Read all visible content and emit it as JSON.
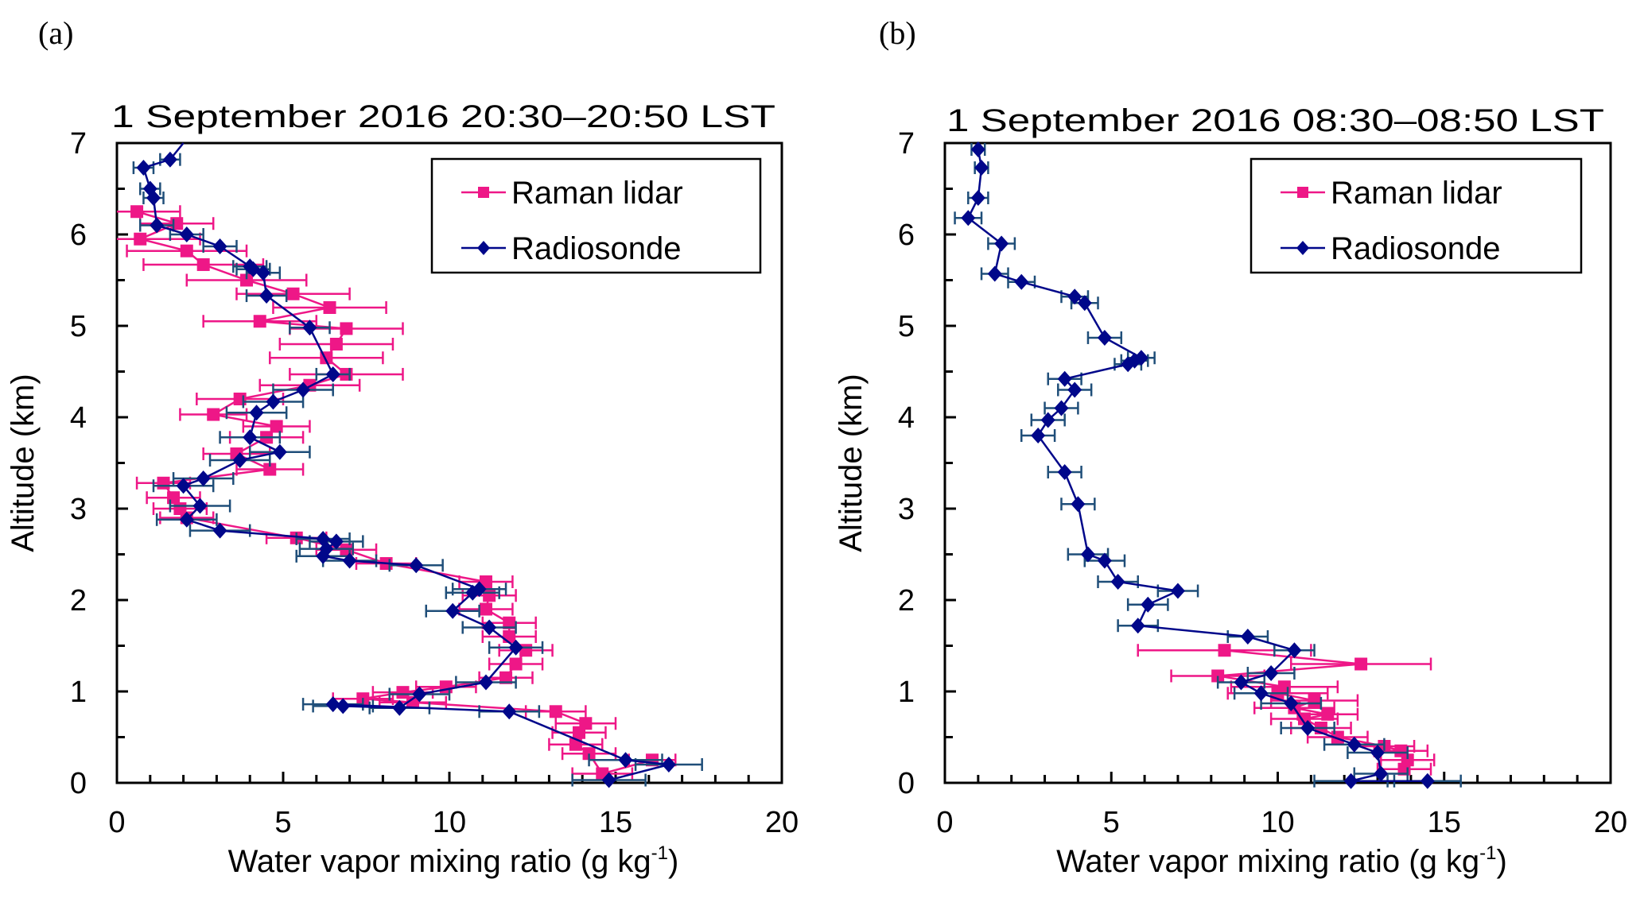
{
  "chart_data": [
    {
      "type": "line",
      "panel_label": "(a)",
      "title": "1 September 2016  20:30–20:50 LST",
      "xlabel": "Water vapor mixing ratio (g kg",
      "xlabel_sup": "-1",
      "xlabel_close": ")",
      "ylabel": "Altitude (km)",
      "xlim": [
        0,
        20
      ],
      "ylim": [
        0,
        7
      ],
      "xticks": [
        "0",
        "5",
        "10",
        "15",
        "20"
      ],
      "yticks": [
        "0",
        "1",
        "2",
        "3",
        "4",
        "5",
        "6",
        "7"
      ],
      "legend": {
        "position": "top-right",
        "entries": [
          "Raman lidar",
          "Radiosonde"
        ]
      },
      "series": [
        {
          "name": "Raman lidar",
          "color": "#ee1787",
          "marker": "square",
          "points": [
            {
              "x": 16.1,
              "y": 0.25,
              "err": 0.7
            },
            {
              "x": 14.6,
              "y": 0.1,
              "err": 0.9
            },
            {
              "x": 14.2,
              "y": 0.32,
              "err": 0.8
            },
            {
              "x": 13.8,
              "y": 0.42,
              "err": 0.8
            },
            {
              "x": 13.9,
              "y": 0.55,
              "err": 0.8
            },
            {
              "x": 14.1,
              "y": 0.65,
              "err": 0.9
            },
            {
              "x": 13.2,
              "y": 0.78,
              "err": 0.9
            },
            {
              "x": 8.9,
              "y": 0.88,
              "err": 1.0
            },
            {
              "x": 7.4,
              "y": 0.92,
              "err": 0.9
            },
            {
              "x": 8.6,
              "y": 0.99,
              "err": 0.9
            },
            {
              "x": 9.9,
              "y": 1.05,
              "err": 0.9
            },
            {
              "x": 11.7,
              "y": 1.15,
              "err": 0.8
            },
            {
              "x": 12.0,
              "y": 1.3,
              "err": 0.8
            },
            {
              "x": 12.3,
              "y": 1.45,
              "err": 0.8
            },
            {
              "x": 11.8,
              "y": 1.6,
              "err": 0.8
            },
            {
              "x": 11.8,
              "y": 1.75,
              "err": 0.8
            },
            {
              "x": 11.1,
              "y": 1.9,
              "err": 0.8
            },
            {
              "x": 11.2,
              "y": 2.05,
              "err": 0.8
            },
            {
              "x": 11.1,
              "y": 2.2,
              "err": 0.8
            },
            {
              "x": 8.1,
              "y": 2.4,
              "err": 0.9
            },
            {
              "x": 6.9,
              "y": 2.55,
              "err": 0.9
            },
            {
              "x": 5.4,
              "y": 2.68,
              "err": 0.9
            },
            {
              "x": 2.1,
              "y": 2.9,
              "err": 0.8
            },
            {
              "x": 1.9,
              "y": 3.0,
              "err": 0.8
            },
            {
              "x": 1.7,
              "y": 3.12,
              "err": 0.8
            },
            {
              "x": 1.4,
              "y": 3.28,
              "err": 0.8
            },
            {
              "x": 4.6,
              "y": 3.43,
              "err": 1.0
            },
            {
              "x": 3.6,
              "y": 3.6,
              "err": 1.0
            },
            {
              "x": 4.5,
              "y": 3.78,
              "err": 1.1
            },
            {
              "x": 4.8,
              "y": 3.9,
              "err": 1.0
            },
            {
              "x": 2.9,
              "y": 4.03,
              "err": 1.0
            },
            {
              "x": 3.7,
              "y": 4.2,
              "err": 1.3
            },
            {
              "x": 5.8,
              "y": 4.35,
              "err": 1.5
            },
            {
              "x": 6.9,
              "y": 4.47,
              "err": 1.7
            },
            {
              "x": 6.3,
              "y": 4.65,
              "err": 1.7
            },
            {
              "x": 6.6,
              "y": 4.8,
              "err": 1.7
            },
            {
              "x": 6.9,
              "y": 4.97,
              "err": 1.7
            },
            {
              "x": 4.3,
              "y": 5.05,
              "err": 1.7
            },
            {
              "x": 6.4,
              "y": 5.2,
              "err": 1.7
            },
            {
              "x": 5.3,
              "y": 5.35,
              "err": 1.7
            },
            {
              "x": 3.9,
              "y": 5.5,
              "err": 1.8
            },
            {
              "x": 2.6,
              "y": 5.67,
              "err": 1.8
            },
            {
              "x": 2.1,
              "y": 5.82,
              "err": 1.8
            },
            {
              "x": 0.7,
              "y": 5.95,
              "err": 1.8
            },
            {
              "x": 1.8,
              "y": 6.12,
              "err": 1.1
            },
            {
              "x": 0.6,
              "y": 6.25,
              "err": 1.3
            }
          ]
        },
        {
          "name": "Radiosonde",
          "color": "#00078a",
          "errcolor": "#1f4e79",
          "marker": "diamond",
          "points": [
            {
              "x": 14.8,
              "y": 0.03,
              "err": 1.1
            },
            {
              "x": 16.6,
              "y": 0.2,
              "err": 1.0
            },
            {
              "x": 15.3,
              "y": 0.25,
              "err": 1.1
            },
            {
              "x": 11.8,
              "y": 0.78,
              "err": 0.9
            },
            {
              "x": 6.5,
              "y": 0.86,
              "err": 0.9
            },
            {
              "x": 6.8,
              "y": 0.84,
              "err": 0.9
            },
            {
              "x": 8.5,
              "y": 0.82,
              "err": 0.9
            },
            {
              "x": 9.1,
              "y": 0.97,
              "err": 0.9
            },
            {
              "x": 11.1,
              "y": 1.1,
              "err": 0.9
            },
            {
              "x": 12.0,
              "y": 1.48,
              "err": 0.8
            },
            {
              "x": 11.2,
              "y": 1.7,
              "err": 0.8
            },
            {
              "x": 10.1,
              "y": 1.88,
              "err": 0.8
            },
            {
              "x": 10.7,
              "y": 2.08,
              "err": 0.8
            },
            {
              "x": 10.9,
              "y": 2.12,
              "err": 0.8
            },
            {
              "x": 9.0,
              "y": 2.38,
              "err": 0.8
            },
            {
              "x": 7.0,
              "y": 2.43,
              "err": 0.8
            },
            {
              "x": 6.2,
              "y": 2.48,
              "err": 0.8
            },
            {
              "x": 6.3,
              "y": 2.56,
              "err": 0.8
            },
            {
              "x": 6.6,
              "y": 2.64,
              "err": 0.8
            },
            {
              "x": 6.2,
              "y": 2.67,
              "err": 0.8
            },
            {
              "x": 3.1,
              "y": 2.76,
              "err": 0.9
            },
            {
              "x": 2.1,
              "y": 2.88,
              "err": 0.9
            },
            {
              "x": 2.5,
              "y": 3.03,
              "err": 0.9
            },
            {
              "x": 2.0,
              "y": 3.25,
              "err": 0.9
            },
            {
              "x": 2.6,
              "y": 3.33,
              "err": 0.9
            },
            {
              "x": 3.7,
              "y": 3.53,
              "err": 0.9
            },
            {
              "x": 4.9,
              "y": 3.62,
              "err": 0.9
            },
            {
              "x": 4.0,
              "y": 3.78,
              "err": 0.9
            },
            {
              "x": 4.2,
              "y": 4.05,
              "err": 0.9
            },
            {
              "x": 4.7,
              "y": 4.17,
              "err": 0.9
            },
            {
              "x": 5.6,
              "y": 4.3,
              "err": 0.9
            },
            {
              "x": 6.5,
              "y": 4.47,
              "err": 0.5
            },
            {
              "x": 5.8,
              "y": 4.98,
              "err": 0.6
            },
            {
              "x": 4.5,
              "y": 5.33,
              "err": 0.6
            },
            {
              "x": 4.4,
              "y": 5.58,
              "err": 0.5
            },
            {
              "x": 4.1,
              "y": 5.62,
              "err": 0.5
            },
            {
              "x": 4.0,
              "y": 5.65,
              "err": 0.5
            },
            {
              "x": 3.1,
              "y": 5.87,
              "err": 0.5
            },
            {
              "x": 2.1,
              "y": 6.0,
              "err": 0.5
            },
            {
              "x": 1.2,
              "y": 6.1,
              "err": 0.5
            },
            {
              "x": 1.1,
              "y": 6.4,
              "err": 0.3
            },
            {
              "x": 1.0,
              "y": 6.5,
              "err": 0.3
            },
            {
              "x": 0.8,
              "y": 6.73,
              "err": 0.3
            },
            {
              "x": 1.6,
              "y": 6.82,
              "err": 0.3
            },
            {
              "x": 2.0,
              "y": 7.05,
              "err": 0
            }
          ]
        }
      ]
    },
    {
      "type": "line",
      "panel_label": "(b)",
      "title": "1 September 2016  08:30–08:50 LST",
      "xlabel": "Water vapor mixing ratio (g kg",
      "xlabel_sup": "-1",
      "xlabel_close": ")",
      "ylabel": "Altitude (km)",
      "xlim": [
        0,
        20
      ],
      "ylim": [
        0,
        7
      ],
      "xticks": [
        "0",
        "5",
        "10",
        "15",
        "20"
      ],
      "yticks": [
        "0",
        "1",
        "2",
        "3",
        "4",
        "5",
        "6",
        "7"
      ],
      "legend": {
        "position": "top-right",
        "entries": [
          "Raman lidar",
          "Radiosonde"
        ]
      },
      "series": [
        {
          "name": "Raman lidar",
          "color": "#ee1787",
          "marker": "square",
          "points": [
            {
              "x": 13.8,
              "y": 0.15,
              "err": 0.8
            },
            {
              "x": 13.9,
              "y": 0.25,
              "err": 0.8
            },
            {
              "x": 13.7,
              "y": 0.35,
              "err": 0.8
            },
            {
              "x": 13.2,
              "y": 0.4,
              "err": 0.9
            },
            {
              "x": 11.8,
              "y": 0.5,
              "err": 0.9
            },
            {
              "x": 11.3,
              "y": 0.6,
              "err": 0.9
            },
            {
              "x": 10.8,
              "y": 0.7,
              "err": 1.0
            },
            {
              "x": 11.5,
              "y": 0.75,
              "err": 0.9
            },
            {
              "x": 10.5,
              "y": 0.82,
              "err": 1.2
            },
            {
              "x": 11.1,
              "y": 0.9,
              "err": 1.3
            },
            {
              "x": 10.0,
              "y": 0.98,
              "err": 1.5
            },
            {
              "x": 10.2,
              "y": 1.05,
              "err": 1.6
            },
            {
              "x": 8.2,
              "y": 1.17,
              "err": 1.4
            },
            {
              "x": 12.5,
              "y": 1.3,
              "err": 2.1
            },
            {
              "x": 8.4,
              "y": 1.45,
              "err": 2.6
            }
          ]
        },
        {
          "name": "Radiosonde",
          "color": "#00078a",
          "errcolor": "#1f4e79",
          "marker": "diamond",
          "points": [
            {
              "x": 14.5,
              "y": 0.02,
              "err": 1.0
            },
            {
              "x": 12.2,
              "y": 0.02,
              "err": 1.1
            },
            {
              "x": 13.1,
              "y": 0.1,
              "err": 0.8
            },
            {
              "x": 13.0,
              "y": 0.33,
              "err": 0.9
            },
            {
              "x": 12.3,
              "y": 0.42,
              "err": 0.9
            },
            {
              "x": 10.9,
              "y": 0.6,
              "err": 0.8
            },
            {
              "x": 10.4,
              "y": 0.87,
              "err": 0.9
            },
            {
              "x": 9.5,
              "y": 0.98,
              "err": 0.8
            },
            {
              "x": 8.9,
              "y": 1.1,
              "err": 0.7
            },
            {
              "x": 9.8,
              "y": 1.2,
              "err": 0.7
            },
            {
              "x": 10.5,
              "y": 1.45,
              "err": 0.6
            },
            {
              "x": 9.1,
              "y": 1.6,
              "err": 0.6
            },
            {
              "x": 5.8,
              "y": 1.72,
              "err": 0.6
            },
            {
              "x": 6.1,
              "y": 1.95,
              "err": 0.6
            },
            {
              "x": 7.0,
              "y": 2.1,
              "err": 0.6
            },
            {
              "x": 5.2,
              "y": 2.2,
              "err": 0.6
            },
            {
              "x": 4.8,
              "y": 2.43,
              "err": 0.6
            },
            {
              "x": 4.3,
              "y": 2.5,
              "err": 0.6
            },
            {
              "x": 4.0,
              "y": 3.05,
              "err": 0.5
            },
            {
              "x": 3.6,
              "y": 3.4,
              "err": 0.5
            },
            {
              "x": 2.8,
              "y": 3.8,
              "err": 0.5
            },
            {
              "x": 3.1,
              "y": 3.97,
              "err": 0.5
            },
            {
              "x": 3.5,
              "y": 4.1,
              "err": 0.5
            },
            {
              "x": 3.9,
              "y": 4.3,
              "err": 0.5
            },
            {
              "x": 3.6,
              "y": 4.42,
              "err": 0.5
            },
            {
              "x": 5.5,
              "y": 4.58,
              "err": 0.4
            },
            {
              "x": 5.7,
              "y": 4.62,
              "err": 0.4
            },
            {
              "x": 5.9,
              "y": 4.65,
              "err": 0.4
            },
            {
              "x": 4.8,
              "y": 4.87,
              "err": 0.5
            },
            {
              "x": 4.2,
              "y": 5.25,
              "err": 0.4
            },
            {
              "x": 3.9,
              "y": 5.32,
              "err": 0.4
            },
            {
              "x": 2.3,
              "y": 5.48,
              "err": 0.4
            },
            {
              "x": 1.5,
              "y": 5.57,
              "err": 0.4
            },
            {
              "x": 1.7,
              "y": 5.9,
              "err": 0.4
            },
            {
              "x": 0.7,
              "y": 6.18,
              "err": 0.4
            },
            {
              "x": 1.0,
              "y": 6.4,
              "err": 0.3
            },
            {
              "x": 1.1,
              "y": 6.73,
              "err": 0.2
            },
            {
              "x": 1.0,
              "y": 6.93,
              "err": 0.2
            }
          ]
        }
      ]
    }
  ]
}
